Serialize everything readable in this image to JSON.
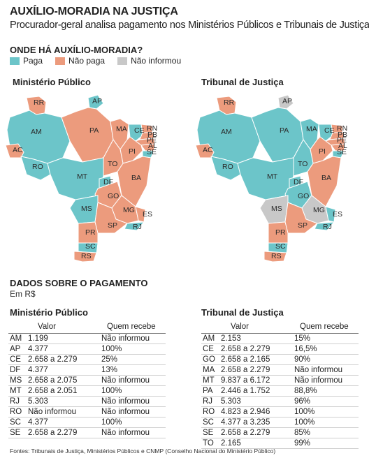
{
  "header": {
    "title": "AUXÍLIO-MORADIA NA JUSTIÇA",
    "subtitle": "Procurador-geral analisa pagamento nos Ministérios Públicos e Tribunais de Justiça"
  },
  "maps_section": {
    "heading": "ONDE HÁ AUXÍLIO-MORADIA?",
    "legend": [
      {
        "label": "Paga",
        "color": "#6cc5c9"
      },
      {
        "label": "Não paga",
        "color": "#ec9b7d"
      },
      {
        "label": "Não informou",
        "color": "#c8c8c8"
      }
    ],
    "colors": {
      "paga": "#6cc5c9",
      "nao_paga": "#ec9b7d",
      "nao_informou": "#c8c8c8"
    },
    "mp_title": "Ministério Público",
    "tj_title": "Tribunal de Justiça",
    "mp_states": {
      "RR": "nao_paga",
      "AP": "paga",
      "AM": "paga",
      "PA": "nao_paga",
      "MA": "nao_paga",
      "CE": "paga",
      "RN": "nao_paga",
      "PB": "nao_paga",
      "PE": "nao_paga",
      "AL": "nao_paga",
      "SE": "paga",
      "PI": "nao_paga",
      "AC": "nao_paga",
      "RO": "paga",
      "TO": "nao_paga",
      "MT": "paga",
      "BA": "nao_paga",
      "DF": "paga",
      "GO": "nao_paga",
      "MG": "nao_paga",
      "MS": "paga",
      "ES": "nao_paga",
      "SP": "nao_paga",
      "RJ": "paga",
      "PR": "nao_paga",
      "SC": "paga",
      "RS": "nao_paga"
    },
    "tj_states": {
      "RR": "nao_paga",
      "AP": "nao_informou",
      "AM": "paga",
      "PA": "paga",
      "MA": "paga",
      "CE": "paga",
      "RN": "nao_paga",
      "PB": "nao_paga",
      "PE": "nao_paga",
      "AL": "nao_paga",
      "SE": "paga",
      "PI": "nao_paga",
      "AC": "nao_paga",
      "RO": "paga",
      "TO": "paga",
      "MT": "paga",
      "BA": "nao_paga",
      "DF": "paga",
      "GO": "paga",
      "MG": "nao_informou",
      "MS": "nao_informou",
      "ES": "paga",
      "SP": "nao_paga",
      "RJ": "paga",
      "PR": "nao_paga",
      "SC": "paga",
      "RS": "nao_paga"
    }
  },
  "data_section": {
    "heading": "DADOS SOBRE O PAGAMENTO",
    "unit": "Em R$",
    "col_valor": "Valor",
    "col_quem": "Quem recebe",
    "mp_table": {
      "title": "Ministério Público",
      "rows": [
        {
          "uf": "AM",
          "valor": "1.199",
          "quem": "Não informou"
        },
        {
          "uf": "AP",
          "valor": "4.377",
          "quem": "100%"
        },
        {
          "uf": "CE",
          "valor": "2.658 a 2.279",
          "quem": "25%"
        },
        {
          "uf": "DF",
          "valor": "4.377",
          "quem": "13%"
        },
        {
          "uf": "MS",
          "valor": "2.658 a 2.075",
          "quem": "Não informou"
        },
        {
          "uf": "MT",
          "valor": "2.658 a 2.051",
          "quem": "100%"
        },
        {
          "uf": "RJ",
          "valor": "5.303",
          "quem": "Não informou"
        },
        {
          "uf": "RO",
          "valor": "Não informou",
          "quem": "Não informou"
        },
        {
          "uf": "SC",
          "valor": "4.377",
          "quem": "100%"
        },
        {
          "uf": "SE",
          "valor": "2.658 a 2.279",
          "quem": "Não informou"
        }
      ]
    },
    "tj_table": {
      "title": "Tribunal de Justiça",
      "rows": [
        {
          "uf": "AM",
          "valor": "2.153",
          "quem": "15%"
        },
        {
          "uf": "CE",
          "valor": "2.658 a 2.279",
          "quem": "16,5%"
        },
        {
          "uf": "GO",
          "valor": "2.658 a 2.165",
          "quem": "90%"
        },
        {
          "uf": "MA",
          "valor": "2.658 a 2.279",
          "quem": "Não informou"
        },
        {
          "uf": "MT",
          "valor": "9.837 a 6.172",
          "quem": "Não informou"
        },
        {
          "uf": "PA",
          "valor": "2.446 a 1.752",
          "quem": "88,8%"
        },
        {
          "uf": "RJ",
          "valor": "5.303",
          "quem": "96%"
        },
        {
          "uf": "RO",
          "valor": "4.823 a 2.946",
          "quem": "100%"
        },
        {
          "uf": "SC",
          "valor": "4.377 a 3.235",
          "quem": "100%"
        },
        {
          "uf": "SE",
          "valor": "2.658 a 2.279",
          "quem": "85%"
        },
        {
          "uf": "TO",
          "valor": "2.165",
          "quem": "99%"
        }
      ]
    }
  },
  "sources": "Fontes: Tribunais de Justiça, Ministérios Públicos e CNMP (Conselho Nacional do Ministério Público)"
}
